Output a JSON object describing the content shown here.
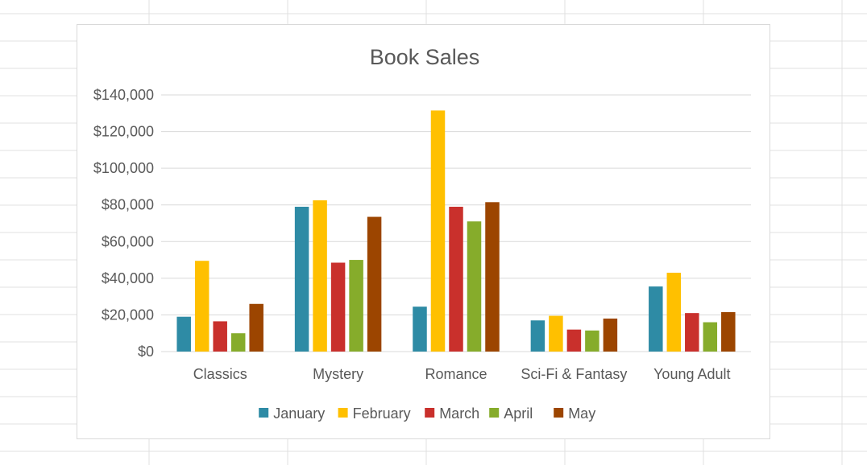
{
  "chart_data": {
    "type": "bar",
    "title": "Book Sales",
    "xlabel": "",
    "ylabel": "",
    "ylim": [
      0,
      140000
    ],
    "y_ticks": [
      0,
      20000,
      40000,
      60000,
      80000,
      100000,
      120000,
      140000
    ],
    "y_tick_labels": [
      "$0",
      "$20,000",
      "$40,000",
      "$60,000",
      "$80,000",
      "$100,000",
      "$120,000",
      "$140,000"
    ],
    "grid": true,
    "legend_position": "bottom",
    "categories": [
      "Classics",
      "Mystery",
      "Romance",
      "Sci-Fi & Fantasy",
      "Young Adult"
    ],
    "series": [
      {
        "name": "January",
        "color": "#2E8BA5",
        "values": [
          19000,
          79000,
          24500,
          17000,
          35500
        ]
      },
      {
        "name": "February",
        "color": "#FFC000",
        "values": [
          49500,
          82500,
          131500,
          19500,
          43000
        ]
      },
      {
        "name": "March",
        "color": "#C9302C",
        "values": [
          16500,
          48500,
          79000,
          12000,
          21000
        ]
      },
      {
        "name": "April",
        "color": "#86AC2B",
        "values": [
          10000,
          50000,
          71000,
          11500,
          16000
        ]
      },
      {
        "name": "May",
        "color": "#9C4500",
        "values": [
          26000,
          73500,
          81500,
          18000,
          21500
        ]
      }
    ]
  }
}
